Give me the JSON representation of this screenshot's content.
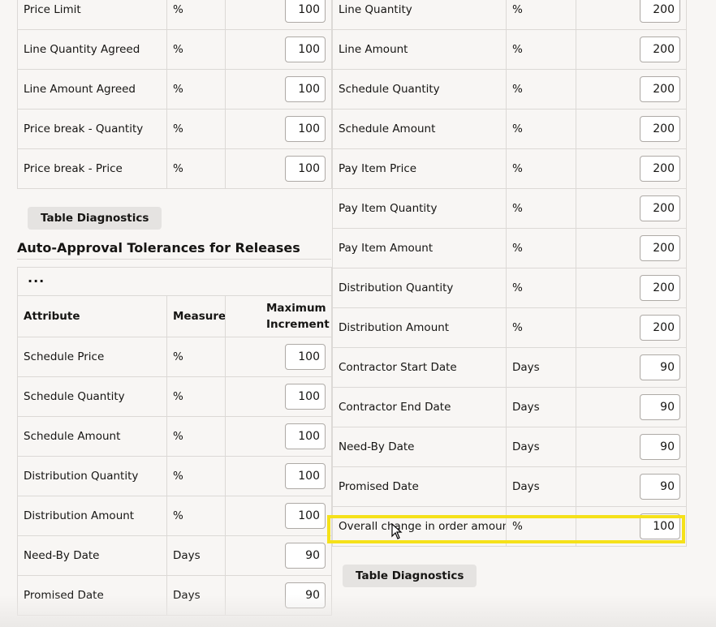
{
  "top_left_table": {
    "rows": [
      {
        "attribute": "Price Limit",
        "measure": "%",
        "value": "100"
      },
      {
        "attribute": "Line Quantity Agreed",
        "measure": "%",
        "value": "100"
      },
      {
        "attribute": "Line Amount Agreed",
        "measure": "%",
        "value": "100"
      },
      {
        "attribute": "Price break - Quantity",
        "measure": "%",
        "value": "100"
      },
      {
        "attribute": "Price break - Price",
        "measure": "%",
        "value": "100"
      }
    ]
  },
  "left_diagnostics_label": "Table Diagnostics",
  "releases_section": {
    "title": "Auto-Approval Tolerances for Releases",
    "more_label": "...",
    "headers": {
      "attribute": "Attribute",
      "measure": "Measure",
      "max": "Maximum Increment"
    },
    "rows": [
      {
        "attribute": "Schedule Price",
        "measure": "%",
        "value": "100"
      },
      {
        "attribute": "Schedule Quantity",
        "measure": "%",
        "value": "100"
      },
      {
        "attribute": "Schedule Amount",
        "measure": "%",
        "value": "100"
      },
      {
        "attribute": "Distribution Quantity",
        "measure": "%",
        "value": "100"
      },
      {
        "attribute": "Distribution Amount",
        "measure": "%",
        "value": "100"
      },
      {
        "attribute": "Need-By Date",
        "measure": "Days",
        "value": "90"
      },
      {
        "attribute": "Promised Date",
        "measure": "Days",
        "value": "90"
      }
    ]
  },
  "right_table": {
    "rows": [
      {
        "attribute": "Line Quantity",
        "measure": "%",
        "value": "200"
      },
      {
        "attribute": "Line Amount",
        "measure": "%",
        "value": "200"
      },
      {
        "attribute": "Schedule Quantity",
        "measure": "%",
        "value": "200"
      },
      {
        "attribute": "Schedule Amount",
        "measure": "%",
        "value": "200"
      },
      {
        "attribute": "Pay Item Price",
        "measure": "%",
        "value": "200"
      },
      {
        "attribute": "Pay Item Quantity",
        "measure": "%",
        "value": "200"
      },
      {
        "attribute": "Pay Item Amount",
        "measure": "%",
        "value": "200"
      },
      {
        "attribute": "Distribution Quantity",
        "measure": "%",
        "value": "200"
      },
      {
        "attribute": "Distribution Amount",
        "measure": "%",
        "value": "200"
      },
      {
        "attribute": "Contractor Start Date",
        "measure": "Days",
        "value": "90"
      },
      {
        "attribute": "Contractor End Date",
        "measure": "Days",
        "value": "90"
      },
      {
        "attribute": "Need-By Date",
        "measure": "Days",
        "value": "90"
      },
      {
        "attribute": "Promised Date",
        "measure": "Days",
        "value": "90"
      },
      {
        "attribute": "Overall change in order amount",
        "measure": "%",
        "value": "100"
      }
    ]
  },
  "right_diagnostics_label": "Table Diagnostics",
  "highlight_color": "#f5e11a"
}
